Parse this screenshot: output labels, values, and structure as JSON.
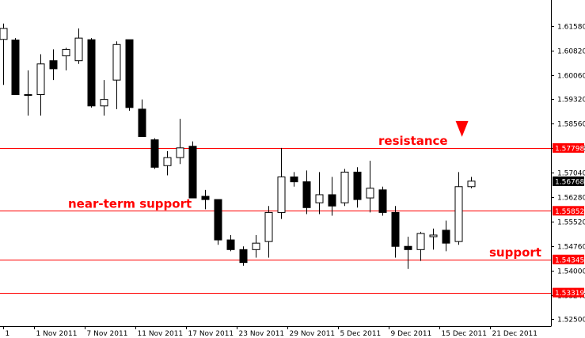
{
  "chart_data": {
    "type": "candlestick",
    "title": "",
    "xlabel": "",
    "ylabel": "",
    "ylim": [
      1.5228,
      1.6238
    ],
    "y_ticks": [
      "1.61580",
      "1.60820",
      "1.60060",
      "1.59320",
      "1.58560",
      "1.57798",
      "1.57040",
      "1.56280",
      "1.55520",
      "1.54760",
      "1.54000",
      "1.53240",
      "1.52500"
    ],
    "x_labels": [
      "1",
      "1 Nov 2011",
      "7 Nov 2011",
      "11 Nov 2011",
      "17 Nov 2011",
      "23 Nov 2011",
      "29 Nov 2011",
      "5 Dec 2011",
      "9 Dec 2011",
      "15 Dec 2011",
      "21 Dec 2011"
    ],
    "x_label_index": [
      0,
      2.5,
      6.5,
      10.5,
      14.5,
      18.5,
      22.5,
      26.5,
      30.5,
      34.5,
      38.5
    ],
    "candles": [
      {
        "o": 1.6116,
        "h": 1.6165,
        "l": 1.5975,
        "c": 1.615
      },
      {
        "o": 1.6114,
        "h": 1.612,
        "l": 1.595,
        "c": 1.5945
      },
      {
        "o": 1.5945,
        "h": 1.602,
        "l": 1.588,
        "c": 1.5945
      },
      {
        "o": 1.5945,
        "h": 1.607,
        "l": 1.588,
        "c": 1.604
      },
      {
        "o": 1.605,
        "h": 1.6085,
        "l": 1.599,
        "c": 1.6025
      },
      {
        "o": 1.6065,
        "h": 1.609,
        "l": 1.602,
        "c": 1.6085
      },
      {
        "o": 1.605,
        "h": 1.615,
        "l": 1.604,
        "c": 1.612
      },
      {
        "o": 1.6115,
        "h": 1.612,
        "l": 1.5905,
        "c": 1.591
      },
      {
        "o": 1.591,
        "h": 1.599,
        "l": 1.588,
        "c": 1.593
      },
      {
        "o": 1.599,
        "h": 1.611,
        "l": 1.59,
        "c": 1.61
      },
      {
        "o": 1.6115,
        "h": 1.6115,
        "l": 1.5895,
        "c": 1.5905
      },
      {
        "o": 1.59,
        "h": 1.593,
        "l": 1.5815,
        "c": 1.5815
      },
      {
        "o": 1.5805,
        "h": 1.581,
        "l": 1.5715,
        "c": 1.572
      },
      {
        "o": 1.5725,
        "h": 1.577,
        "l": 1.5695,
        "c": 1.575
      },
      {
        "o": 1.575,
        "h": 1.587,
        "l": 1.573,
        "c": 1.578
      },
      {
        "o": 1.5785,
        "h": 1.58,
        "l": 1.5625,
        "c": 1.5625
      },
      {
        "o": 1.563,
        "h": 1.565,
        "l": 1.559,
        "c": 1.562
      },
      {
        "o": 1.562,
        "h": 1.562,
        "l": 1.548,
        "c": 1.5495
      },
      {
        "o": 1.5495,
        "h": 1.551,
        "l": 1.546,
        "c": 1.5465
      },
      {
        "o": 1.5465,
        "h": 1.5475,
        "l": 1.5415,
        "c": 1.5425
      },
      {
        "o": 1.5465,
        "h": 1.551,
        "l": 1.544,
        "c": 1.5485
      },
      {
        "o": 1.549,
        "h": 1.56,
        "l": 1.544,
        "c": 1.558
      },
      {
        "o": 1.558,
        "h": 1.578,
        "l": 1.556,
        "c": 1.569
      },
      {
        "o": 1.569,
        "h": 1.5705,
        "l": 1.566,
        "c": 1.5675
      },
      {
        "o": 1.5675,
        "h": 1.571,
        "l": 1.5575,
        "c": 1.5595
      },
      {
        "o": 1.561,
        "h": 1.5705,
        "l": 1.5575,
        "c": 1.5635
      },
      {
        "o": 1.5635,
        "h": 1.569,
        "l": 1.557,
        "c": 1.56
      },
      {
        "o": 1.561,
        "h": 1.5715,
        "l": 1.56,
        "c": 1.5705
      },
      {
        "o": 1.5705,
        "h": 1.572,
        "l": 1.5595,
        "c": 1.562
      },
      {
        "o": 1.5625,
        "h": 1.574,
        "l": 1.558,
        "c": 1.5655
      },
      {
        "o": 1.565,
        "h": 1.566,
        "l": 1.557,
        "c": 1.558
      },
      {
        "o": 1.558,
        "h": 1.56,
        "l": 1.544,
        "c": 1.5475
      },
      {
        "o": 1.5475,
        "h": 1.5505,
        "l": 1.5405,
        "c": 1.5465
      },
      {
        "o": 1.5465,
        "h": 1.552,
        "l": 1.543,
        "c": 1.5515
      },
      {
        "o": 1.5505,
        "h": 1.553,
        "l": 1.5465,
        "c": 1.551
      },
      {
        "o": 1.5525,
        "h": 1.5555,
        "l": 1.546,
        "c": 1.5485
      },
      {
        "o": 1.549,
        "h": 1.5705,
        "l": 1.548,
        "c": 1.566
      },
      {
        "o": 1.566,
        "h": 1.569,
        "l": 1.5655,
        "c": 1.5677
      }
    ],
    "levels": [
      {
        "label": "resistance",
        "value": 1.57798,
        "tag": "1.57798"
      },
      {
        "label": "near-term support",
        "value": 1.55852,
        "tag": "1.55852"
      },
      {
        "label": "support",
        "value": 1.54345,
        "tag": "1.54345"
      },
      {
        "label": "",
        "value": 1.53319,
        "tag": "1.53319"
      }
    ],
    "current_price": {
      "value": 1.56768,
      "tag": "1.56768"
    },
    "arrow_marker": {
      "index": 36.3,
      "direction": "down"
    },
    "colors": {
      "line": "#ff0000",
      "bear_body": "#000000",
      "bull_body": "#ffffff",
      "outline": "#000000",
      "tag_bg": "#ff0000",
      "tag_text": "#ffffff",
      "current_tag_bg": "#000000",
      "current_tag_text": "#ffffff",
      "annotation": "#ff0000"
    }
  }
}
